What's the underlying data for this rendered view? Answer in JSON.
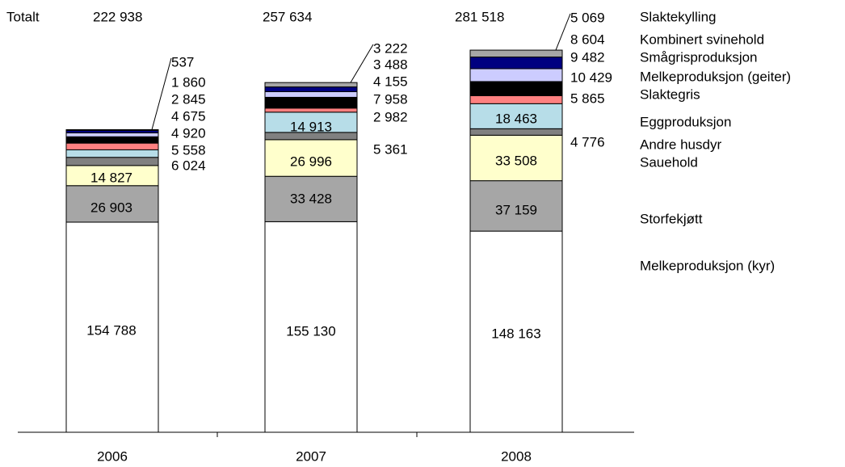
{
  "chart_data": {
    "type": "stacked_bar",
    "total_title": "Totalt",
    "categories": [
      "2006",
      "2007",
      "2008"
    ],
    "totals": [
      222938,
      257634,
      281518
    ],
    "total_labels": [
      "222 938",
      "257 634",
      "281 518"
    ],
    "ylim": [
      0,
      300000
    ],
    "series": [
      {
        "name": "Melkeproduksjon (kyr)",
        "color": "#ffffff",
        "values": [
          154788,
          155130,
          148163
        ],
        "value_labels": [
          "154 788",
          "155 130",
          "148 163"
        ]
      },
      {
        "name": "Storfekjøtt",
        "color": "#a6a6a6",
        "values": [
          26903,
          33428,
          37159
        ],
        "value_labels": [
          "26 903",
          "33 428",
          "37 159"
        ]
      },
      {
        "name": "Sauehold",
        "color": "#ffffcc",
        "values": [
          14827,
          26996,
          33508
        ],
        "value_labels": [
          "14 827",
          "26 996",
          "33 508"
        ]
      },
      {
        "name": "Andre husdyr",
        "color": "#808080",
        "values": [
          6024,
          5361,
          4776
        ],
        "value_labels": [
          "6 024",
          "5 361",
          "4 776"
        ]
      },
      {
        "name": "Eggproduksjon",
        "color": "#b7dde8",
        "values": [
          5558,
          14913,
          18463
        ],
        "value_labels": [
          "5 558",
          "14 913",
          "18 463"
        ]
      },
      {
        "name": "Slaktegris",
        "color": "#ff8080",
        "values": [
          4920,
          2982,
          5865
        ],
        "value_labels": [
          "4 920",
          "2 982",
          "5 865"
        ]
      },
      {
        "name": "Melkeproduksjon (geiter)",
        "color": "#000000",
        "values": [
          4675,
          7958,
          10429
        ],
        "value_labels": [
          "4 675",
          "7 958",
          "10 429"
        ]
      },
      {
        "name": "Smågrisproduksjon",
        "color": "#ccccff",
        "values": [
          2845,
          4155,
          9482
        ],
        "value_labels": [
          "2 845",
          "4 155",
          "9 482"
        ]
      },
      {
        "name": "Kombinert svinehold",
        "color": "#000080",
        "values": [
          1860,
          3488,
          8604
        ],
        "value_labels": [
          "1 860",
          "3 488",
          "8 604"
        ]
      },
      {
        "name": "Slaktekylling",
        "color": "#a6a6a6",
        "values": [
          537,
          3222,
          5069
        ],
        "value_labels": [
          "537",
          "3 222",
          "5 069"
        ]
      }
    ]
  }
}
